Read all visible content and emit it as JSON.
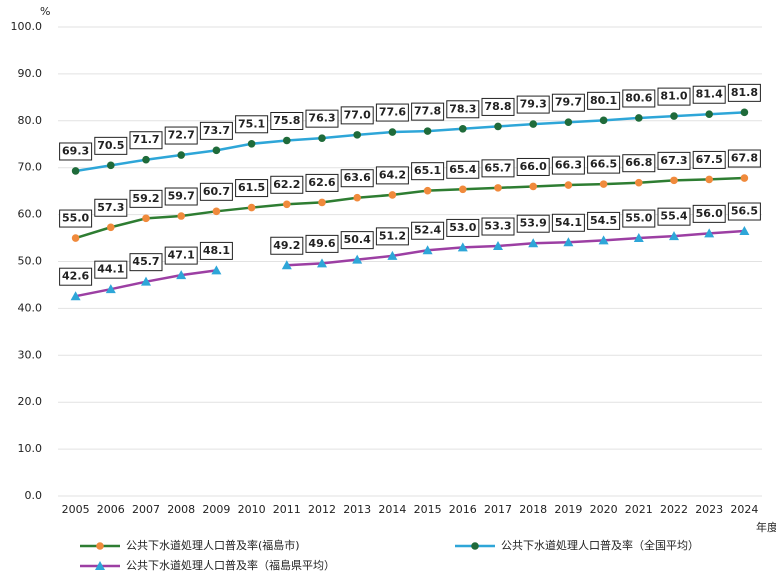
{
  "chart_data": {
    "type": "line",
    "y_unit": "%",
    "x_unit": "年度",
    "categories": [
      "2005",
      "2006",
      "2007",
      "2008",
      "2009",
      "2010",
      "2011",
      "2012",
      "2013",
      "2014",
      "2015",
      "2016",
      "2017",
      "2018",
      "2019",
      "2020",
      "2021",
      "2022",
      "2023",
      "2024"
    ],
    "ylim": [
      0,
      100
    ],
    "yticks": [
      {
        "value": 0,
        "label": "0.0"
      },
      {
        "value": 10,
        "label": "10.0"
      },
      {
        "value": 20,
        "label": "20.0"
      },
      {
        "value": 30,
        "label": "30.0"
      },
      {
        "value": 40,
        "label": "40.0"
      },
      {
        "value": 50,
        "label": "50.0"
      },
      {
        "value": 60,
        "label": "60.0"
      },
      {
        "value": 70,
        "label": "70.0"
      },
      {
        "value": 80,
        "label": "80.0"
      },
      {
        "value": 90,
        "label": "90.0"
      },
      {
        "value": 100,
        "label": "100.0"
      }
    ],
    "grid": true,
    "series": [
      {
        "name": "公共下水道処理人口普及率(福島市)",
        "color": "#2e7d32",
        "marker_color": "#f08a3c",
        "marker": "circle",
        "values": [
          55.0,
          57.3,
          59.2,
          59.7,
          60.7,
          61.5,
          62.2,
          62.6,
          63.6,
          64.2,
          65.1,
          65.4,
          65.7,
          66.0,
          66.3,
          66.5,
          66.8,
          67.3,
          67.5,
          67.8
        ],
        "value_labels": [
          "55.0",
          "57.3",
          "59.2",
          "59.7",
          "60.7",
          "61.5",
          "62.2",
          "62.6",
          "63.6",
          "64.2",
          "65.1",
          "65.4",
          "65.7",
          "66.0",
          "66.3",
          "66.5",
          "66.8",
          "67.3",
          "67.5",
          "67.8"
        ]
      },
      {
        "name": "公共下水道処理人口普及率（全国平均）",
        "color": "#2ea6d8",
        "marker_color": "#1f6b3a",
        "marker": "circle",
        "values": [
          69.3,
          70.5,
          71.7,
          72.7,
          73.7,
          75.1,
          75.8,
          76.3,
          77.0,
          77.6,
          77.8,
          78.3,
          78.8,
          79.3,
          79.7,
          80.1,
          80.6,
          81.0,
          81.4,
          81.8
        ],
        "value_labels": [
          "69.3",
          "70.5",
          "71.7",
          "72.7",
          "73.7",
          "75.1",
          "75.8",
          "76.3",
          "77.0",
          "77.6",
          "77.8",
          "78.3",
          "78.8",
          "79.3",
          "79.7",
          "80.1",
          "80.6",
          "81.0",
          "81.4",
          "81.8"
        ]
      },
      {
        "name": "公共下水道処理人口普及率（福島県平均）",
        "color": "#9c3fa3",
        "marker_color": "#2ea6d8",
        "marker": "triangle",
        "values": [
          42.6,
          44.1,
          45.7,
          47.1,
          48.1,
          null,
          49.2,
          49.6,
          50.4,
          51.2,
          52.4,
          53.0,
          53.3,
          53.9,
          54.1,
          54.5,
          55.0,
          55.4,
          56.0,
          56.5
        ],
        "value_labels": [
          "42.6",
          "44.1",
          "45.7",
          "47.1",
          "48.1",
          null,
          "49.2",
          "49.6",
          "50.4",
          "51.2",
          "52.4",
          "53.0",
          "53.3",
          "53.9",
          "54.1",
          "54.5",
          "55.0",
          "55.4",
          "56.0",
          "56.5"
        ]
      }
    ]
  }
}
